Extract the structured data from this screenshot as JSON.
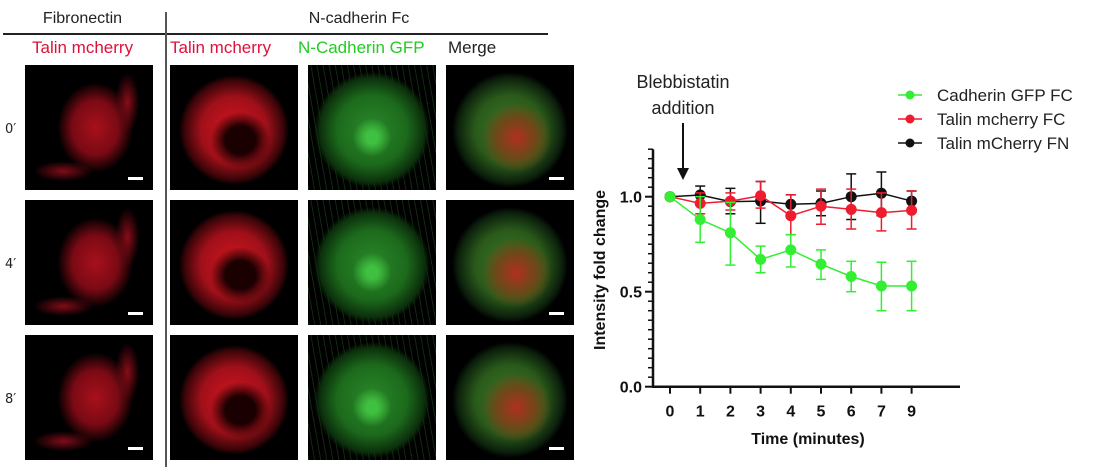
{
  "panel": {
    "fibronectin_header": "Fibronectin",
    "ncadherin_header": "N-cadherin Fc",
    "columns": [
      {
        "label": "Talin mcherry",
        "color": "#e0103a"
      },
      {
        "label": "Talin mcherry",
        "color": "#e0103a"
      },
      {
        "label": "N-Cadherin GFP",
        "color": "#22cc22"
      },
      {
        "label": "Merge",
        "color": "#222222"
      }
    ],
    "rows": [
      "0′",
      "4′",
      "8′"
    ]
  },
  "chart_data": {
    "type": "line",
    "annotation": {
      "line1": "Blebbistatin",
      "line2": "addition",
      "at_x": "0.5"
    },
    "xlabel": "Time (minutes)",
    "ylabel": "Intensity fold change",
    "categories": [
      "0",
      "1",
      "2",
      "3",
      "4",
      "5",
      "6",
      "7",
      "9"
    ],
    "ylim": [
      0,
      1.25
    ],
    "yticks": [
      "0.0",
      "0.5",
      "1.0"
    ],
    "legend_position": "top-right",
    "grid": false,
    "series": [
      {
        "name": "Cadherin GFP FC",
        "color": "#33ee33",
        "values": [
          1.0,
          0.88,
          0.81,
          0.67,
          0.72,
          0.645,
          0.58,
          0.53,
          0.53
        ],
        "err_low": [
          1.0,
          0.76,
          0.64,
          0.6,
          0.63,
          0.565,
          0.5,
          0.4,
          0.4
        ],
        "err_high": [
          1.0,
          1.0,
          0.97,
          0.74,
          0.8,
          0.72,
          0.66,
          0.655,
          0.66
        ]
      },
      {
        "name": "Talin mcherry FC",
        "color": "#ee1c2e",
        "values": [
          1.0,
          0.965,
          0.977,
          1.005,
          0.9,
          0.95,
          0.933,
          0.916,
          0.928
        ],
        "err_low": [
          1.0,
          0.91,
          0.93,
          0.94,
          0.8,
          0.855,
          0.83,
          0.82,
          0.83
        ],
        "err_high": [
          1.0,
          1.02,
          1.02,
          1.08,
          1.01,
          1.04,
          1.04,
          1.02,
          1.03
        ]
      },
      {
        "name": "Talin mCherry FN",
        "color": "#111111",
        "values": [
          1.0,
          1.009,
          0.974,
          0.977,
          0.96,
          0.965,
          1.0,
          1.018,
          0.977
        ],
        "err_low": [
          1.0,
          0.96,
          0.91,
          0.86,
          0.91,
          0.9,
          0.88,
          0.9,
          0.92
        ],
        "err_high": [
          1.0,
          1.056,
          1.044,
          1.08,
          1.01,
          1.03,
          1.12,
          1.13,
          1.03
        ]
      }
    ]
  }
}
